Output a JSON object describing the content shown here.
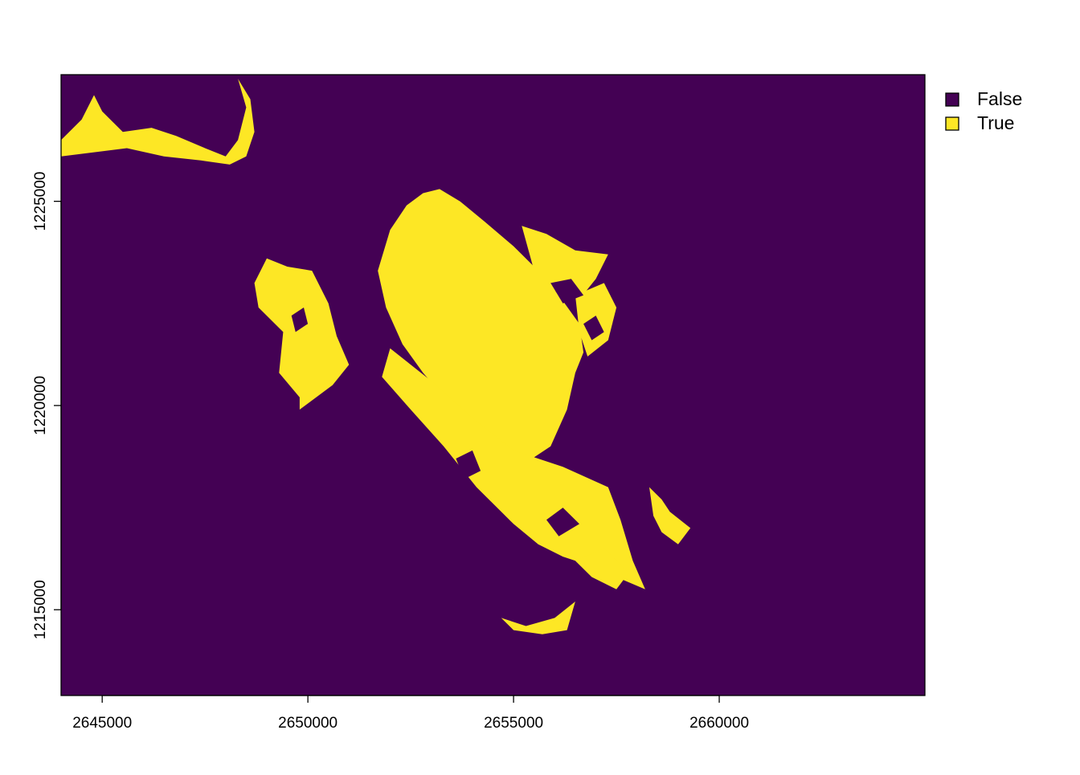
{
  "chart_data": {
    "type": "raster",
    "title": "",
    "xlabel": "",
    "ylabel": "",
    "xlim": [
      2644000,
      2665000
    ],
    "ylim": [
      1212900,
      1228100
    ],
    "x_ticks": [
      {
        "value": 2645000,
        "label": "2645000"
      },
      {
        "value": 2650000,
        "label": "2650000"
      },
      {
        "value": 2655000,
        "label": "2655000"
      },
      {
        "value": 2660000,
        "label": "2660000"
      }
    ],
    "y_ticks": [
      {
        "value": 1215000,
        "label": "1215000"
      },
      {
        "value": 1220000,
        "label": "1220000"
      },
      {
        "value": 1225000,
        "label": "1225000"
      }
    ],
    "legend": {
      "placement": "right-top",
      "entries": [
        {
          "label": "False",
          "color": "#440154"
        },
        {
          "label": "True",
          "color": "#FDE725"
        }
      ]
    },
    "background_class": "False",
    "regions": [
      {
        "class": "True",
        "name": "main-mass",
        "points": [
          [
            2652800,
            1225200
          ],
          [
            2653200,
            1225300
          ],
          [
            2653700,
            1225000
          ],
          [
            2654300,
            1224500
          ],
          [
            2655000,
            1223900
          ],
          [
            2655600,
            1223300
          ],
          [
            2656100,
            1222700
          ],
          [
            2656600,
            1222000
          ],
          [
            2656700,
            1221300
          ],
          [
            2656500,
            1220800
          ],
          [
            2656300,
            1219900
          ],
          [
            2655900,
            1219000
          ],
          [
            2655300,
            1218600
          ],
          [
            2654600,
            1218900
          ],
          [
            2654000,
            1219500
          ],
          [
            2653400,
            1220100
          ],
          [
            2652800,
            1220800
          ],
          [
            2652300,
            1221500
          ],
          [
            2651900,
            1222400
          ],
          [
            2651700,
            1223300
          ],
          [
            2652000,
            1224300
          ],
          [
            2652400,
            1224900
          ]
        ]
      },
      {
        "class": "True",
        "name": "lower-slope",
        "points": [
          [
            2652000,
            1221400
          ],
          [
            2653000,
            1220600
          ],
          [
            2654000,
            1219700
          ],
          [
            2655000,
            1218900
          ],
          [
            2656200,
            1218500
          ],
          [
            2657300,
            1218000
          ],
          [
            2657600,
            1217200
          ],
          [
            2657900,
            1216200
          ],
          [
            2658200,
            1215500
          ],
          [
            2657500,
            1215800
          ],
          [
            2656800,
            1216100
          ],
          [
            2656200,
            1216300
          ],
          [
            2655600,
            1216600
          ],
          [
            2655000,
            1217100
          ],
          [
            2654100,
            1218000
          ],
          [
            2653300,
            1219000
          ],
          [
            2652500,
            1219900
          ],
          [
            2651800,
            1220700
          ]
        ]
      },
      {
        "class": "True",
        "name": "west-patch",
        "points": [
          [
            2649000,
            1223600
          ],
          [
            2649500,
            1223400
          ],
          [
            2650100,
            1223300
          ],
          [
            2650500,
            1222500
          ],
          [
            2650700,
            1221700
          ],
          [
            2651000,
            1221000
          ],
          [
            2650600,
            1220500
          ],
          [
            2649800,
            1219900
          ],
          [
            2649800,
            1220200
          ],
          [
            2649300,
            1220800
          ],
          [
            2649400,
            1221800
          ],
          [
            2648800,
            1222400
          ],
          [
            2648700,
            1223000
          ]
        ]
      },
      {
        "class": "True",
        "name": "north-west-corner",
        "points": [
          [
            2644000,
            1226500
          ],
          [
            2644500,
            1227000
          ],
          [
            2644800,
            1227600
          ],
          [
            2645000,
            1227200
          ],
          [
            2645500,
            1226700
          ],
          [
            2646200,
            1226800
          ],
          [
            2646800,
            1226600
          ],
          [
            2647500,
            1226300
          ],
          [
            2648000,
            1226100
          ],
          [
            2648300,
            1226500
          ],
          [
            2648500,
            1227300
          ],
          [
            2648300,
            1228000
          ],
          [
            2648600,
            1227500
          ],
          [
            2648700,
            1226700
          ],
          [
            2648500,
            1226100
          ],
          [
            2648100,
            1225900
          ],
          [
            2647400,
            1226000
          ],
          [
            2646500,
            1226100
          ],
          [
            2645600,
            1226300
          ],
          [
            2644800,
            1226200
          ],
          [
            2644000,
            1226100
          ]
        ]
      },
      {
        "class": "True",
        "name": "north-east-ridge",
        "points": [
          [
            2655200,
            1224400
          ],
          [
            2655800,
            1224200
          ],
          [
            2656500,
            1223800
          ],
          [
            2657300,
            1223700
          ],
          [
            2657000,
            1223100
          ],
          [
            2656600,
            1222600
          ],
          [
            2656000,
            1222800
          ],
          [
            2655500,
            1223300
          ]
        ]
      },
      {
        "class": "True",
        "name": "east-ridge",
        "points": [
          [
            2656500,
            1222700
          ],
          [
            2657200,
            1223000
          ],
          [
            2657500,
            1222400
          ],
          [
            2657300,
            1221600
          ],
          [
            2656800,
            1221200
          ],
          [
            2656600,
            1221800
          ]
        ]
      },
      {
        "class": "True",
        "name": "east-islands",
        "points": [
          [
            2658300,
            1218000
          ],
          [
            2658600,
            1217700
          ],
          [
            2658800,
            1217400
          ],
          [
            2659300,
            1217000
          ],
          [
            2659000,
            1216600
          ],
          [
            2658600,
            1216900
          ],
          [
            2658400,
            1217300
          ]
        ]
      },
      {
        "class": "True",
        "name": "south-patch",
        "points": [
          [
            2654700,
            1214800
          ],
          [
            2655300,
            1214600
          ],
          [
            2656000,
            1214800
          ],
          [
            2656500,
            1215200
          ],
          [
            2656300,
            1214500
          ],
          [
            2655700,
            1214400
          ],
          [
            2655000,
            1214500
          ]
        ]
      },
      {
        "class": "True",
        "name": "south-east-patch",
        "points": [
          [
            2656500,
            1216200
          ],
          [
            2657200,
            1216500
          ],
          [
            2657800,
            1215900
          ],
          [
            2657500,
            1215500
          ],
          [
            2656900,
            1215800
          ]
        ]
      }
    ],
    "holes": [
      {
        "class": "False",
        "name": "east-ridge-hole-1",
        "points": [
          [
            2655900,
            1223000
          ],
          [
            2656400,
            1223100
          ],
          [
            2656700,
            1222700
          ],
          [
            2656200,
            1222500
          ]
        ]
      },
      {
        "class": "False",
        "name": "east-ridge-hole-2",
        "points": [
          [
            2656700,
            1222000
          ],
          [
            2657000,
            1222200
          ],
          [
            2657200,
            1221800
          ],
          [
            2656900,
            1221600
          ]
        ]
      },
      {
        "class": "False",
        "name": "slope-hole-1",
        "points": [
          [
            2653600,
            1218700
          ],
          [
            2654000,
            1218900
          ],
          [
            2654200,
            1218400
          ],
          [
            2653800,
            1218200
          ]
        ]
      },
      {
        "class": "False",
        "name": "slope-hole-2",
        "points": [
          [
            2655800,
            1217200
          ],
          [
            2656200,
            1217500
          ],
          [
            2656600,
            1217100
          ],
          [
            2656100,
            1216800
          ]
        ]
      },
      {
        "class": "False",
        "name": "west-hole",
        "points": [
          [
            2649600,
            1222200
          ],
          [
            2649900,
            1222400
          ],
          [
            2650000,
            1222000
          ],
          [
            2649700,
            1221800
          ]
        ]
      }
    ]
  }
}
